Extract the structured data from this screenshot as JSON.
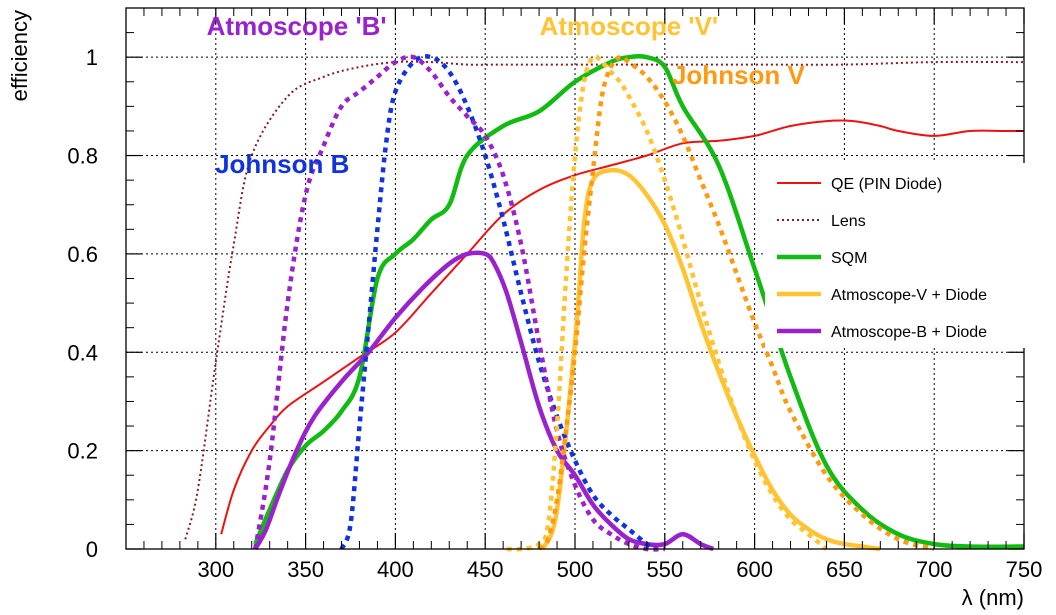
{
  "chart_data": {
    "type": "line",
    "title": "",
    "xlabel": "λ (nm)",
    "ylabel": "efficiency",
    "xlim": [
      250,
      750
    ],
    "ylim": [
      0,
      1.1
    ],
    "xticks": [
      300,
      350,
      400,
      450,
      500,
      550,
      600,
      650,
      700,
      750
    ],
    "xtick_labels": [
      "300",
      "350",
      "400",
      "450",
      "500",
      "550",
      "600",
      "650",
      "700",
      "750"
    ],
    "yticks": [
      0,
      0.2,
      0.4,
      0.6,
      0.8,
      1
    ],
    "ytick_labels": [
      "0",
      "0.2",
      "0.4",
      "0.6",
      "0.8",
      "1"
    ],
    "grid": true,
    "legend_position": "right",
    "series": [
      {
        "name": "QE (PIN Diode)",
        "in_legend": true,
        "color": "#ee1111",
        "dash": "solid",
        "width": 2,
        "x": [
          303,
          310,
          320,
          330,
          340,
          360,
          380,
          400,
          420,
          440,
          460,
          480,
          500,
          520,
          540,
          560,
          580,
          600,
          620,
          640,
          655,
          670,
          680,
          700,
          720,
          740,
          750
        ],
        "y": [
          0.03,
          0.12,
          0.2,
          0.25,
          0.29,
          0.34,
          0.39,
          0.44,
          0.52,
          0.6,
          0.68,
          0.73,
          0.76,
          0.78,
          0.8,
          0.825,
          0.83,
          0.84,
          0.86,
          0.87,
          0.87,
          0.86,
          0.85,
          0.84,
          0.85,
          0.85,
          0.85
        ]
      },
      {
        "name": "Lens",
        "in_legend": true,
        "color": "#8b1a1a",
        "dash": "dotted",
        "width": 2,
        "x": [
          283,
          290,
          300,
          310,
          320,
          340,
          360,
          380,
          400,
          420,
          440,
          460,
          500,
          550,
          600,
          650,
          700,
          750
        ],
        "y": [
          0.02,
          0.12,
          0.38,
          0.62,
          0.8,
          0.92,
          0.96,
          0.98,
          0.99,
          0.99,
          0.985,
          0.985,
          0.985,
          0.985,
          0.985,
          0.985,
          0.99,
          0.99
        ]
      },
      {
        "name": "SQM",
        "in_legend": true,
        "color": "#11bb11",
        "dash": "solid",
        "width": 4.5,
        "x": [
          322,
          330,
          340,
          350,
          360,
          370,
          380,
          390,
          400,
          410,
          420,
          430,
          440,
          460,
          480,
          500,
          520,
          530,
          540,
          550,
          560,
          580,
          600,
          620,
          640,
          660,
          680,
          700,
          720,
          750
        ],
        "y": [
          0.01,
          0.08,
          0.16,
          0.21,
          0.24,
          0.28,
          0.35,
          0.55,
          0.6,
          0.63,
          0.67,
          0.7,
          0.8,
          0.86,
          0.89,
          0.95,
          0.99,
          1.0,
          1.0,
          0.98,
          0.9,
          0.78,
          0.57,
          0.35,
          0.17,
          0.08,
          0.03,
          0.01,
          0.005,
          0.005
        ]
      },
      {
        "name": "Atmoscope-V + Diode",
        "in_legend": true,
        "color": "#ffc433",
        "dash": "solid",
        "width": 4.5,
        "x": [
          482,
          490,
          500,
          505,
          510,
          520,
          530,
          540,
          550,
          560,
          570,
          580,
          590,
          600,
          610,
          620,
          630,
          640,
          650,
          660,
          670
        ],
        "y": [
          0.0,
          0.08,
          0.42,
          0.66,
          0.75,
          0.77,
          0.76,
          0.72,
          0.66,
          0.57,
          0.46,
          0.36,
          0.27,
          0.19,
          0.12,
          0.07,
          0.04,
          0.02,
          0.01,
          0.005,
          0.0
        ]
      },
      {
        "name": "Atmoscope-B + Diode",
        "in_legend": true,
        "color": "#9922cc",
        "dash": "solid",
        "width": 4.5,
        "x": [
          322,
          328,
          335,
          345,
          355,
          370,
          385,
          400,
          415,
          430,
          440,
          450,
          455,
          462,
          470,
          480,
          490,
          500,
          510,
          520,
          530,
          540,
          550,
          560,
          570,
          577
        ],
        "y": [
          0.0,
          0.04,
          0.11,
          0.2,
          0.27,
          0.34,
          0.4,
          0.47,
          0.53,
          0.58,
          0.6,
          0.6,
          0.58,
          0.52,
          0.42,
          0.29,
          0.2,
          0.15,
          0.09,
          0.05,
          0.02,
          0.01,
          0.01,
          0.03,
          0.01,
          0.0
        ]
      },
      {
        "name": "Johnson B",
        "in_legend": false,
        "color": "#1133dd",
        "dash": "dotted",
        "width": 4.5,
        "x": [
          370,
          375,
          380,
          385,
          390,
          395,
          400,
          410,
          420,
          430,
          440,
          450,
          460,
          470,
          480,
          490,
          500,
          510,
          520,
          530,
          540,
          545
        ],
        "y": [
          0.0,
          0.05,
          0.25,
          0.45,
          0.65,
          0.83,
          0.93,
          0.99,
          1.0,
          0.97,
          0.9,
          0.8,
          0.67,
          0.52,
          0.38,
          0.27,
          0.18,
          0.11,
          0.07,
          0.04,
          0.01,
          0.0
        ]
      },
      {
        "name": "Atmoscope 'B'",
        "in_legend": false,
        "color": "#9922cc",
        "dash": "dotted",
        "width": 4.5,
        "x": [
          322,
          330,
          340,
          350,
          360,
          370,
          380,
          390,
          400,
          410,
          420,
          430,
          440,
          450,
          460,
          470,
          480,
          490,
          500,
          510,
          520,
          530,
          540,
          550
        ],
        "y": [
          0.0,
          0.18,
          0.5,
          0.72,
          0.82,
          0.9,
          0.93,
          0.96,
          0.99,
          1.0,
          0.97,
          0.92,
          0.88,
          0.84,
          0.76,
          0.62,
          0.42,
          0.24,
          0.13,
          0.06,
          0.03,
          0.01,
          0.0,
          0.0
        ]
      },
      {
        "name": "Atmoscope 'V'",
        "in_legend": false,
        "color": "#ffc433",
        "dash": "dotted",
        "width": 4.5,
        "x": [
          462,
          470,
          480,
          485,
          490,
          495,
          500,
          505,
          510,
          515,
          520,
          525,
          530,
          540,
          550,
          560,
          570,
          580,
          590,
          600,
          610,
          620,
          630,
          640
        ],
        "y": [
          0.0,
          0.0,
          0.01,
          0.05,
          0.25,
          0.55,
          0.8,
          0.95,
          1.0,
          0.99,
          0.97,
          0.95,
          0.92,
          0.85,
          0.75,
          0.63,
          0.5,
          0.38,
          0.27,
          0.18,
          0.11,
          0.06,
          0.03,
          0.0
        ]
      },
      {
        "name": "Johnson V",
        "in_legend": false,
        "color": "#ff9911",
        "dash": "dotted",
        "width": 4.5,
        "x": [
          480,
          485,
          490,
          495,
          500,
          505,
          510,
          515,
          520,
          525,
          530,
          540,
          550,
          560,
          570,
          580,
          590,
          600,
          610,
          620,
          640,
          660,
          680,
          700
        ],
        "y": [
          0.0,
          0.02,
          0.1,
          0.24,
          0.4,
          0.6,
          0.77,
          0.92,
          0.98,
          1.0,
          0.99,
          0.96,
          0.91,
          0.84,
          0.75,
          0.66,
          0.56,
          0.46,
          0.37,
          0.28,
          0.15,
          0.07,
          0.02,
          0.0
        ]
      }
    ],
    "annotations": [
      {
        "text": "Atmoscope 'B'",
        "color": "#9922cc",
        "x": 345,
        "y": 1.045
      },
      {
        "text": "Atmoscope 'V'",
        "color": "#ffc433",
        "x": 530,
        "y": 1.045
      },
      {
        "text": "Johnson V",
        "color": "#ff9911",
        "x": 591,
        "y": 0.945
      },
      {
        "text": "Johnson B",
        "color": "#1133dd",
        "x": 337,
        "y": 0.765
      }
    ]
  }
}
